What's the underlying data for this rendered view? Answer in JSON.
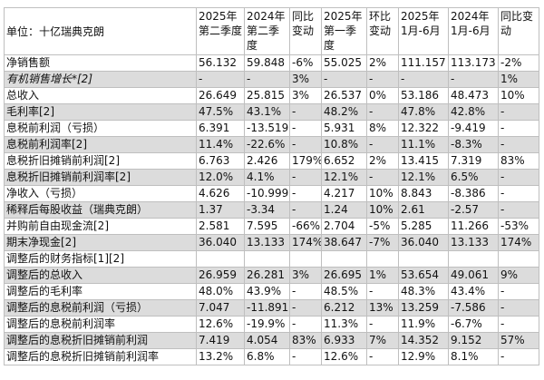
{
  "header": {
    "unit_label": "单位：十亿瑞典克朗",
    "columns": [
      "2025年第二季度",
      "2024年第二季度",
      "同比变动",
      "2025年第一季度",
      "环比变动",
      "2025年1月-6月",
      "2024年1月-6月",
      "同比变动"
    ]
  },
  "rows": [
    {
      "label": "净销售额",
      "values": [
        "56.132",
        "59.848",
        "-6%",
        "55.025",
        "2%",
        "111.157",
        "113.173",
        "-2%"
      ],
      "band": false,
      "italic": false
    },
    {
      "label": "有机销售增长*[2]",
      "values": [
        "-",
        "-",
        "3%",
        "-",
        "-",
        "-",
        "-",
        "1%"
      ],
      "band": true,
      "italic": true
    },
    {
      "label": "总收入",
      "values": [
        "26.649",
        "25.815",
        "3%",
        "26.537",
        "0%",
        "53.186",
        "48.473",
        "10%"
      ],
      "band": false,
      "italic": false
    },
    {
      "label": "毛利率[2]",
      "values": [
        "47.5%",
        "43.1%",
        "-",
        "48.2%",
        "-",
        "47.8%",
        "42.8%",
        "-"
      ],
      "band": true,
      "italic": false
    },
    {
      "label": "息税前利润（亏损）",
      "values": [
        "6.391",
        "-13.519",
        "-",
        "5.931",
        "8%",
        "12.322",
        "-9.419",
        "-"
      ],
      "band": false,
      "italic": false
    },
    {
      "label": "息税前利润率[2]",
      "values": [
        "11.4%",
        "-22.6%",
        "-",
        "10.8%",
        "-",
        "11.1%",
        "-8.3%",
        "-"
      ],
      "band": true,
      "italic": false
    },
    {
      "label": "息税折旧摊销前利润[2]",
      "values": [
        "6.763",
        "2.426",
        "179%",
        "6.652",
        "2%",
        "13.415",
        "7.319",
        "83%"
      ],
      "band": false,
      "italic": false
    },
    {
      "label": "息税折旧摊销前利润率[2]",
      "values": [
        "12.0%",
        "4.1%",
        "-",
        "12.1%",
        "-",
        "12.1%",
        "6.5%",
        "-"
      ],
      "band": true,
      "italic": false
    },
    {
      "label": "净收入（亏损）",
      "values": [
        "4.626",
        "-10.999",
        "-",
        "4.217",
        "10%",
        "8.843",
        "-8.386",
        "-"
      ],
      "band": false,
      "italic": false
    },
    {
      "label": "稀释后每股收益（瑞典克朗）",
      "values": [
        "1.37",
        "-3.34",
        "-",
        "1.24",
        "10%",
        "2.61",
        "-2.57",
        "-"
      ],
      "band": true,
      "italic": false
    },
    {
      "label": "并购前自由现金流[2]",
      "values": [
        "2.581",
        "7.595",
        "-66%",
        "2.704",
        "-5%",
        "5.285",
        "11.266",
        "-53%"
      ],
      "band": false,
      "italic": false
    },
    {
      "label": "期末净现金[2]",
      "values": [
        "36.040",
        "13.133",
        "174%",
        "38.647",
        "-7%",
        "36.040",
        "13.133",
        "174%"
      ],
      "band": true,
      "italic": false
    },
    {
      "label": "调整后的财务指标[1][2]",
      "values": [
        "",
        "",
        "",
        "",
        "",
        "",
        "",
        ""
      ],
      "band": false,
      "italic": false
    },
    {
      "label": "调整后的总收入",
      "values": [
        "26.959",
        "26.281",
        "3%",
        "26.695",
        "1%",
        "53.654",
        "49.061",
        "9%"
      ],
      "band": true,
      "italic": false
    },
    {
      "label": "调整后的毛利率",
      "values": [
        "48.0%",
        "43.9%",
        "-",
        "48.5%",
        "-",
        "48.3%",
        "43.4%",
        "-"
      ],
      "band": false,
      "italic": false
    },
    {
      "label": "调整后的息税前利润（亏损）",
      "values": [
        "7.047",
        "-11.891",
        "-",
        "6.212",
        "13%",
        "13.259",
        "-7.586",
        "-"
      ],
      "band": true,
      "italic": false
    },
    {
      "label": "调整后的息税前利润率",
      "values": [
        "12.6%",
        "-19.9%",
        "-",
        "11.3%",
        "-",
        "11.9%",
        "-6.7%",
        "-"
      ],
      "band": false,
      "italic": false
    },
    {
      "label": "调整后的息税折旧摊销前利润",
      "values": [
        "7.419",
        "4.054",
        "83%",
        "6.933",
        "7%",
        "14.352",
        "9.152",
        "57%"
      ],
      "band": true,
      "italic": false
    },
    {
      "label": "调整后的息税折旧摊销前利润率",
      "values": [
        "13.2%",
        "6.8%",
        "-",
        "12.6%",
        "-",
        "12.9%",
        "8.1%",
        "-"
      ],
      "band": false,
      "italic": false
    }
  ]
}
